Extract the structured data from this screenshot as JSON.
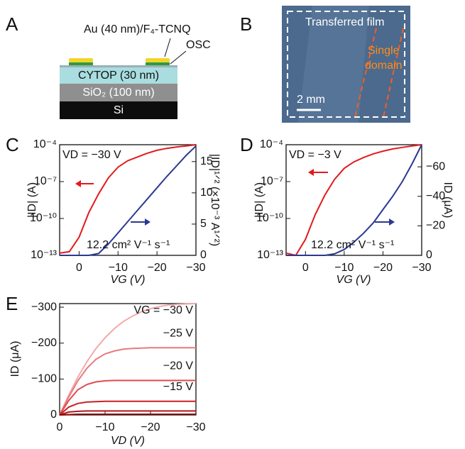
{
  "schematic": {
    "label": "A",
    "top_label": "Au (40 nm)/F₄-TCNQ",
    "osc_label": "OSC",
    "layers": [
      "CYTOP (30 nm)",
      "SiO₂ (100 nm)",
      "Si"
    ]
  },
  "micrograph": {
    "label": "B",
    "caption": "Transferred film",
    "domain_label": [
      "Single",
      "domain"
    ],
    "scale_bar": "2 mm"
  },
  "chart_data": [
    {
      "type": "line",
      "panel": "C",
      "xlabel": "VG (V)",
      "ylabel": "|ID| (A)",
      "y2label": "|ID|¹ᐟ² (×10⁻³ A¹ᐟ²)",
      "annotations": [
        "VD = −30 V",
        "12.2 cm² V⁻¹ s⁻¹"
      ],
      "x": [
        5,
        2.5,
        0,
        -2.5,
        -5,
        -7.5,
        -10,
        -12.5,
        -15,
        -17.5,
        -20,
        -22.5,
        -25,
        -27.5,
        -30
      ],
      "xlim": [
        5,
        -30
      ],
      "xticks": [
        0,
        {
          "value": -10,
          "label": "−10"
        },
        {
          "value": -20,
          "label": "−20"
        },
        {
          "value": -30,
          "label": "−30"
        }
      ],
      "ylog": true,
      "ylim": [
        1e-13,
        0.0001
      ],
      "yticks": [
        {
          "value": 1e-13,
          "label": "10⁻¹³"
        },
        {
          "value": 1e-10,
          "label": "10⁻¹⁰"
        },
        {
          "value": 1e-07,
          "label": "10⁻⁷"
        },
        {
          "value": 0.0001,
          "label": "10⁻⁴"
        }
      ],
      "y2lim": [
        0,
        17.7
      ],
      "y2ticks": [
        0,
        5,
        10,
        15
      ],
      "series": [
        {
          "color": "#e31a1c",
          "values": [
            1.5e-13,
            2e-13,
            3e-12,
            3e-10,
            1e-08,
            2e-07,
            1.5e-06,
            5e-06,
            1e-05,
            2e-05,
            3.5e-05,
            5e-05,
            6.5e-05,
            8e-05,
            0.0001
          ]
        },
        {
          "color": "#2b3990",
          "axis": "y2",
          "values": [
            0,
            0,
            0,
            0,
            0.3,
            1.8,
            3.6,
            5.4,
            7.2,
            9.0,
            10.8,
            12.6,
            14.3,
            16,
            17.5
          ]
        }
      ]
    },
    {
      "type": "line",
      "panel": "D",
      "xlabel": "VG (V)",
      "ylabel": "|ID| (A)",
      "y2label": "ID (μA)",
      "annotations": [
        "VD = −3 V",
        "12.2 cm² V⁻¹ s⁻¹"
      ],
      "x": [
        5,
        2.5,
        0,
        -2.5,
        -5,
        -7.5,
        -10,
        -12.5,
        -15,
        -17.5,
        -20,
        -22.5,
        -25,
        -27.5,
        -30
      ],
      "xlim": [
        5,
        -30
      ],
      "xticks": [
        0,
        {
          "value": -10,
          "label": "−10"
        },
        {
          "value": -20,
          "label": "−20"
        },
        {
          "value": -30,
          "label": "−30"
        }
      ],
      "ylog": true,
      "ylim": [
        1e-13,
        0.0001
      ],
      "yticks": [
        {
          "value": 1e-13,
          "label": "10⁻¹³"
        },
        {
          "value": 1e-10,
          "label": "10⁻¹⁰"
        },
        {
          "value": 1e-07,
          "label": "10⁻⁷"
        },
        {
          "value": 0.0001,
          "label": "10⁻⁴"
        }
      ],
      "y2lim": [
        0,
        -75
      ],
      "y2ticks": [
        0,
        {
          "value": -20,
          "label": "−20"
        },
        {
          "value": -40,
          "label": "−40"
        },
        {
          "value": -60,
          "label": "−60"
        }
      ],
      "series": [
        {
          "color": "#e31a1c",
          "values": [
            1.5e-13,
            1e-13,
            2e-12,
            2e-10,
            8e-09,
            1.5e-07,
            1.2e-06,
            4e-06,
            9e-06,
            1.8e-05,
            3e-05,
            4.5e-05,
            6e-05,
            8e-05,
            0.0001
          ]
        },
        {
          "color": "#2b3990",
          "axis": "y2",
          "values": [
            0,
            0,
            0,
            0,
            0,
            -1,
            -4,
            -9,
            -15,
            -22,
            -31,
            -40,
            -50,
            -62,
            -75
          ]
        }
      ]
    },
    {
      "type": "line",
      "panel": "E",
      "xlabel": "VD (V)",
      "ylabel": "ID (μA)",
      "x": [
        0,
        -2,
        -4,
        -6,
        -8,
        -10,
        -12,
        -14,
        -16,
        -18,
        -20,
        -22,
        -24,
        -26,
        -28,
        -30
      ],
      "xlim": [
        0,
        -30
      ],
      "xticks": [
        0,
        {
          "value": -10,
          "label": "−10"
        },
        {
          "value": -20,
          "label": "−20"
        },
        {
          "value": -30,
          "label": "−30"
        }
      ],
      "ylim": [
        0,
        -310
      ],
      "yticks": [
        0,
        {
          "value": -100,
          "label": "−100"
        },
        {
          "value": -200,
          "label": "−200"
        },
        {
          "value": -300,
          "label": "−300"
        }
      ],
      "series": [
        {
          "name": "VG = −30 V",
          "color": "#f4a9ab",
          "values": [
            0,
            -55,
            -105,
            -148,
            -185,
            -215,
            -240,
            -260,
            -275,
            -287,
            -296,
            -302,
            -306,
            -308,
            -309,
            -310
          ]
        },
        {
          "name": "−25 V",
          "color": "#e87a7c",
          "values": [
            0,
            -50,
            -95,
            -130,
            -155,
            -170,
            -178,
            -183,
            -185,
            -186,
            -187,
            -187,
            -187,
            -187,
            -187,
            -187
          ]
        },
        {
          "name": "−20 V",
          "color": "#de4c4f",
          "values": [
            0,
            -40,
            -70,
            -85,
            -92,
            -95,
            -96,
            -96,
            -96,
            -96,
            -96,
            -96,
            -96,
            -96,
            -96,
            -96
          ]
        },
        {
          "name": "−15 V",
          "color": "#cc2024",
          "values": [
            0,
            -22,
            -32,
            -36,
            -37,
            -38,
            -38,
            -38,
            -38,
            -38,
            -38,
            -38,
            -38,
            -38,
            -38,
            -38
          ]
        },
        {
          "color": "#b01518",
          "values": [
            0,
            -8,
            -10,
            -11,
            -11,
            -11,
            -11,
            -11,
            -11,
            -11,
            -11,
            -11,
            -11,
            -11,
            -11,
            -11
          ]
        },
        {
          "color": "#8b0a0c",
          "values": [
            0,
            -1,
            -2,
            -2,
            -2,
            -2,
            -2,
            -2,
            -2,
            -2,
            -2,
            -2,
            -2,
            -2,
            -2,
            -2
          ]
        }
      ]
    }
  ]
}
